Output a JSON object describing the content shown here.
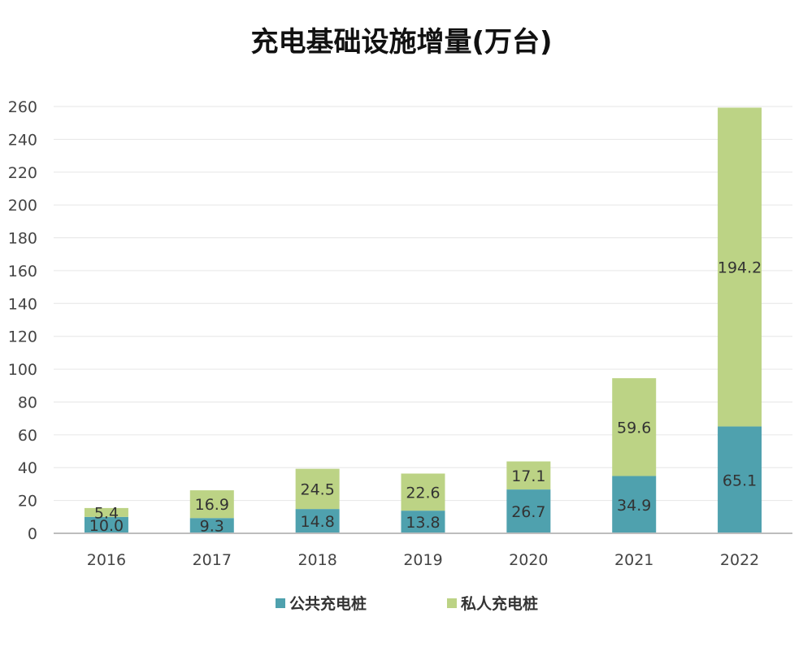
{
  "title": "充电基础设施增量(万台)",
  "chart_data": {
    "type": "bar",
    "stacked": true,
    "title": "充电基础设施增量(万台)",
    "xlabel": "",
    "ylabel": "",
    "categories": [
      "2016",
      "2017",
      "2018",
      "2019",
      "2020",
      "2021",
      "2022"
    ],
    "series": [
      {
        "name": "公共充电桩",
        "color": "#4fa1ae",
        "values": [
          10.0,
          9.3,
          14.8,
          13.8,
          26.7,
          34.9,
          65.1
        ]
      },
      {
        "name": "私人充电桩",
        "color": "#bcd385",
        "values": [
          5.4,
          16.9,
          24.5,
          22.6,
          17.1,
          59.6,
          194.2
        ]
      }
    ],
    "ylim": [
      0,
      260
    ],
    "yticks": [
      0,
      20,
      40,
      60,
      80,
      100,
      120,
      140,
      160,
      180,
      200,
      220,
      240,
      260
    ],
    "grid": true,
    "legend_position": "bottom"
  }
}
